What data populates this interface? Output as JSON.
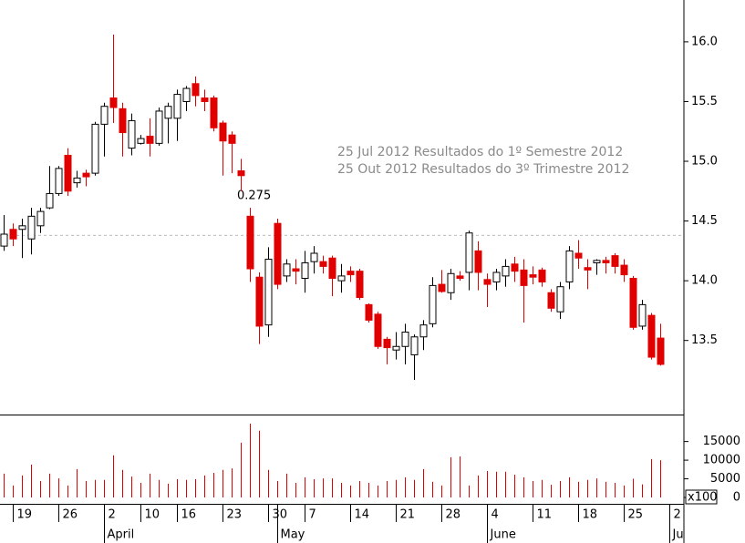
{
  "chart_data": {
    "type": "candlestick",
    "categories": [
      null,
      "19",
      null,
      null,
      null,
      null,
      "26",
      null,
      null,
      null,
      null,
      "2",
      null,
      null,
      null,
      "10",
      null,
      null,
      null,
      "16",
      null,
      null,
      null,
      null,
      "23",
      null,
      null,
      null,
      null,
      "30",
      null,
      null,
      null,
      "7",
      null,
      null,
      null,
      null,
      "14",
      null,
      null,
      null,
      null,
      "21",
      null,
      null,
      null,
      null,
      "28",
      null,
      null,
      null,
      null,
      "4",
      null,
      null,
      null,
      null,
      "11",
      null,
      null,
      null,
      null,
      "18",
      null,
      null,
      null,
      null,
      "25",
      null,
      null,
      null,
      null,
      "2"
    ],
    "months": [
      null,
      null,
      null,
      null,
      null,
      null,
      null,
      null,
      null,
      null,
      null,
      "April",
      null,
      null,
      null,
      null,
      null,
      null,
      null,
      null,
      null,
      null,
      null,
      null,
      null,
      null,
      null,
      null,
      null,
      null,
      "May",
      null,
      null,
      null,
      null,
      null,
      null,
      null,
      null,
      null,
      null,
      null,
      null,
      null,
      null,
      null,
      null,
      null,
      null,
      null,
      null,
      null,
      null,
      "June",
      null,
      null,
      null,
      null,
      null,
      null,
      null,
      null,
      null,
      null,
      null,
      null,
      null,
      null,
      null,
      null,
      null,
      null,
      null,
      "Ju"
    ],
    "open": [
      14.29,
      14.43,
      14.43,
      14.35,
      14.46,
      14.61,
      14.73,
      15.05,
      14.82,
      14.9,
      14.9,
      15.31,
      15.53,
      15.44,
      15.11,
      15.15,
      15.21,
      15.15,
      15.36,
      15.36,
      15.5,
      15.65,
      15.53,
      15.53,
      15.32,
      15.22,
      14.92,
      14.54,
      14.03,
      13.63,
      14.48,
      14.04,
      14.1,
      14.02,
      14.16,
      14.16,
      14.19,
      14.0,
      14.08,
      14.08,
      13.8,
      13.72,
      13.51,
      13.42,
      13.45,
      13.38,
      13.53,
      13.64,
      13.97,
      13.9,
      14.04,
      14.07,
      14.25,
      14.01,
      13.99,
      14.04,
      14.14,
      14.09,
      14.05,
      14.09,
      13.9,
      13.74,
      13.99,
      14.23,
      14.11,
      14.15,
      14.17,
      14.21,
      14.13,
      14.02,
      13.62,
      13.71,
      13.52,
      null
    ],
    "high": [
      14.55,
      14.48,
      14.52,
      14.61,
      14.61,
      14.96,
      14.96,
      15.11,
      14.92,
      14.93,
      15.33,
      15.49,
      16.06,
      15.49,
      15.4,
      15.22,
      15.36,
      15.45,
      15.49,
      15.6,
      15.63,
      15.71,
      15.6,
      15.55,
      15.34,
      15.25,
      15.02,
      14.61,
      14.07,
      14.28,
      14.52,
      14.18,
      14.18,
      14.25,
      14.29,
      14.21,
      14.21,
      14.14,
      14.12,
      14.1,
      13.81,
      13.74,
      13.53,
      13.57,
      13.64,
      13.55,
      13.67,
      14.03,
      14.09,
      14.1,
      14.08,
      14.42,
      14.33,
      14.06,
      14.1,
      14.18,
      14.2,
      14.18,
      14.12,
      14.11,
      13.93,
      13.99,
      14.29,
      14.34,
      14.18,
      14.18,
      14.2,
      14.23,
      14.18,
      14.04,
      13.84,
      13.73,
      13.64,
      null
    ],
    "low": [
      14.25,
      14.29,
      14.19,
      14.22,
      14.4,
      14.6,
      14.71,
      14.71,
      14.78,
      14.79,
      14.88,
      15.04,
      15.32,
      15.04,
      15.05,
      15.14,
      15.04,
      15.13,
      15.15,
      15.17,
      15.42,
      15.46,
      15.42,
      15.25,
      14.88,
      14.9,
      14.75,
      13.99,
      13.47,
      13.53,
      13.93,
      13.99,
      13.97,
      13.9,
      14.06,
      14.06,
      13.87,
      13.9,
      13.99,
      13.84,
      13.65,
      13.43,
      13.3,
      13.34,
      13.3,
      13.17,
      13.42,
      13.61,
      13.9,
      13.84,
      14.0,
      13.92,
      13.92,
      13.78,
      13.92,
      13.95,
      13.99,
      13.65,
      13.97,
      13.95,
      13.74,
      13.68,
      13.93,
      14.1,
      13.93,
      14.05,
      14.06,
      14.06,
      13.99,
      13.59,
      13.59,
      13.34,
      13.29,
      null
    ],
    "close": [
      14.39,
      14.35,
      14.46,
      14.54,
      14.58,
      14.73,
      14.94,
      14.75,
      14.86,
      14.87,
      15.31,
      15.46,
      15.45,
      15.24,
      15.34,
      15.19,
      15.15,
      15.42,
      15.46,
      15.56,
      15.61,
      15.55,
      15.5,
      15.28,
      15.17,
      15.15,
      14.88,
      14.1,
      13.62,
      14.18,
      13.97,
      14.14,
      14.08,
      14.15,
      14.23,
      14.12,
      14.02,
      14.04,
      14.05,
      13.86,
      13.67,
      13.45,
      13.44,
      13.45,
      13.57,
      13.53,
      13.63,
      13.96,
      13.91,
      14.06,
      14.02,
      14.4,
      14.07,
      13.97,
      14.07,
      14.12,
      14.08,
      13.96,
      14.03,
      13.99,
      13.77,
      13.95,
      14.25,
      14.19,
      14.09,
      14.17,
      14.15,
      14.12,
      14.05,
      13.61,
      13.8,
      13.36,
      13.3,
      null
    ],
    "volume": [
      6400,
      3200,
      5900,
      8800,
      4400,
      6400,
      5100,
      3200,
      7600,
      4400,
      4700,
      4700,
      11300,
      7400,
      5600,
      3900,
      6400,
      4700,
      3700,
      4900,
      4700,
      4900,
      5900,
      6600,
      7400,
      7800,
      14700,
      19800,
      17900,
      7400,
      4400,
      6400,
      3900,
      5400,
      4900,
      5100,
      5100,
      3900,
      3200,
      4400,
      3900,
      3200,
      4400,
      4700,
      5400,
      4700,
      7600,
      4200,
      3200,
      10800,
      11000,
      3200,
      5900,
      7100,
      6900,
      6900,
      6100,
      5400,
      4400,
      4700,
      3400,
      4400,
      5400,
      4200,
      4700,
      5100,
      4200,
      3900,
      3200,
      5000,
      3500,
      10300,
      10000,
      null
    ],
    "up_color": "#ffffff",
    "down_color": "#e00000",
    "volume_color": "#e00000",
    "ylim": [
      12.88,
      16.35
    ],
    "yticks": [
      13.5,
      {
        "value": 14,
        "label": "14.0"
      },
      14.5,
      {
        "value": 15,
        "label": "15.0"
      },
      15.5,
      {
        "value": 16,
        "label": "16.0"
      }
    ],
    "reference_line": 14.38,
    "volume_ylim": [
      0,
      22000
    ],
    "volume_ticks": [
      0,
      5000,
      10000,
      15000
    ],
    "volume_unit": "x100",
    "annotations": [
      "0.275",
      "25 Jul 2012 Resultados do 1º Semestre 2012",
      "25 Out 2012 Resultados do 3º Trimestre 2012"
    ]
  }
}
